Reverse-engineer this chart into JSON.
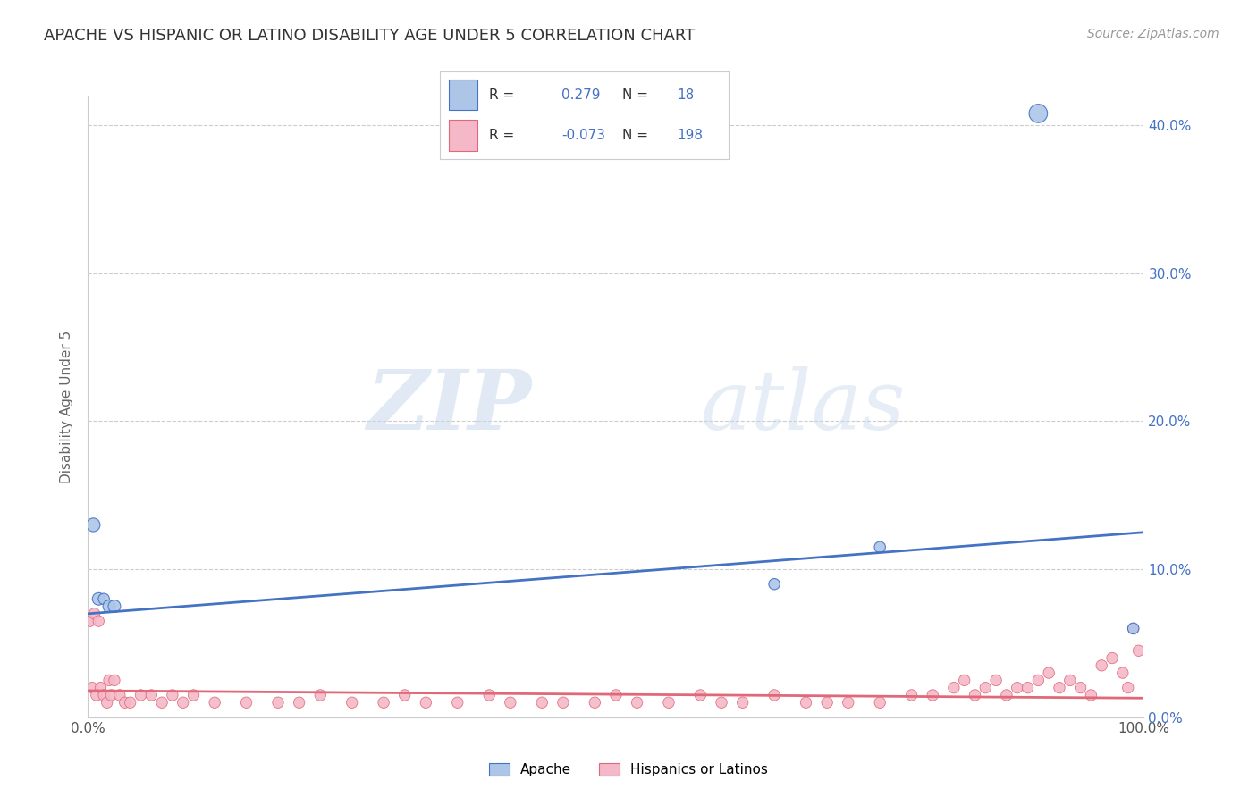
{
  "title": "APACHE VS HISPANIC OR LATINO DISABILITY AGE UNDER 5 CORRELATION CHART",
  "source": "Source: ZipAtlas.com",
  "ylabel": "Disability Age Under 5",
  "xlim": [
    0,
    100
  ],
  "ylim": [
    0,
    42
  ],
  "yticks": [
    0,
    10,
    20,
    30,
    40
  ],
  "ytick_labels": [
    "0.0%",
    "10.0%",
    "20.0%",
    "30.0%",
    "40.0%"
  ],
  "apache_R": 0.279,
  "apache_N": 18,
  "hispanic_R": -0.073,
  "hispanic_N": 198,
  "apache_color": "#adc6e8",
  "apache_line_color": "#4472c4",
  "hispanic_color": "#f4b8c8",
  "hispanic_line_color": "#e06878",
  "apache_line_start": 7.0,
  "apache_line_end": 12.5,
  "hispanic_line_start": 1.8,
  "hispanic_line_end": 1.3,
  "apache_x": [
    0.5,
    1.0,
    1.5,
    2.0,
    2.5,
    65.0,
    75.0,
    90.0,
    99.0
  ],
  "apache_y": [
    13.0,
    8.0,
    8.0,
    7.5,
    7.5,
    9.0,
    11.5,
    40.8,
    6.0
  ],
  "apache_sizes": [
    120,
    100,
    80,
    100,
    100,
    80,
    80,
    220,
    80
  ],
  "hispanic_x": [
    0.2,
    0.4,
    0.6,
    0.8,
    1.0,
    1.2,
    1.5,
    1.8,
    2.0,
    2.2,
    2.5,
    3.0,
    3.5,
    4.0,
    5.0,
    6.0,
    7.0,
    8.0,
    9.0,
    10.0,
    12.0,
    15.0,
    18.0,
    20.0,
    22.0,
    25.0,
    28.0,
    30.0,
    32.0,
    35.0,
    38.0,
    40.0,
    43.0,
    45.0,
    48.0,
    50.0,
    52.0,
    55.0,
    58.0,
    60.0,
    62.0,
    65.0,
    68.0,
    70.0,
    72.0,
    75.0,
    78.0,
    80.0,
    82.0,
    83.0,
    84.0,
    85.0,
    86.0,
    87.0,
    88.0,
    89.0,
    90.0,
    91.0,
    92.0,
    93.0,
    94.0,
    95.0,
    96.0,
    97.0,
    98.0,
    98.5,
    99.0,
    99.5
  ],
  "hispanic_y": [
    6.5,
    2.0,
    7.0,
    1.5,
    6.5,
    2.0,
    1.5,
    1.0,
    2.5,
    1.5,
    2.5,
    1.5,
    1.0,
    1.0,
    1.5,
    1.5,
    1.0,
    1.5,
    1.0,
    1.5,
    1.0,
    1.0,
    1.0,
    1.0,
    1.5,
    1.0,
    1.0,
    1.5,
    1.0,
    1.0,
    1.5,
    1.0,
    1.0,
    1.0,
    1.0,
    1.5,
    1.0,
    1.0,
    1.5,
    1.0,
    1.0,
    1.5,
    1.0,
    1.0,
    1.0,
    1.0,
    1.5,
    1.5,
    2.0,
    2.5,
    1.5,
    2.0,
    2.5,
    1.5,
    2.0,
    2.0,
    2.5,
    3.0,
    2.0,
    2.5,
    2.0,
    1.5,
    3.5,
    4.0,
    3.0,
    2.0,
    6.0,
    4.5
  ],
  "hispanic_sizes": [
    80,
    80,
    80,
    80,
    80,
    80,
    80,
    80,
    80,
    80,
    80,
    80,
    80,
    80,
    80,
    80,
    80,
    80,
    80,
    80,
    80,
    80,
    80,
    80,
    80,
    80,
    80,
    80,
    80,
    80,
    80,
    80,
    80,
    80,
    80,
    80,
    80,
    80,
    80,
    80,
    80,
    80,
    80,
    80,
    80,
    80,
    80,
    80,
    80,
    80,
    80,
    80,
    80,
    80,
    80,
    80,
    80,
    80,
    80,
    80,
    80,
    80,
    80,
    80,
    80,
    80,
    80,
    80
  ],
  "watermark_zip": "ZIP",
  "watermark_atlas": "atlas",
  "background_color": "#ffffff",
  "grid_color": "#cccccc",
  "legend_box_color": "#4472c4",
  "legend_text_color": "#333333"
}
